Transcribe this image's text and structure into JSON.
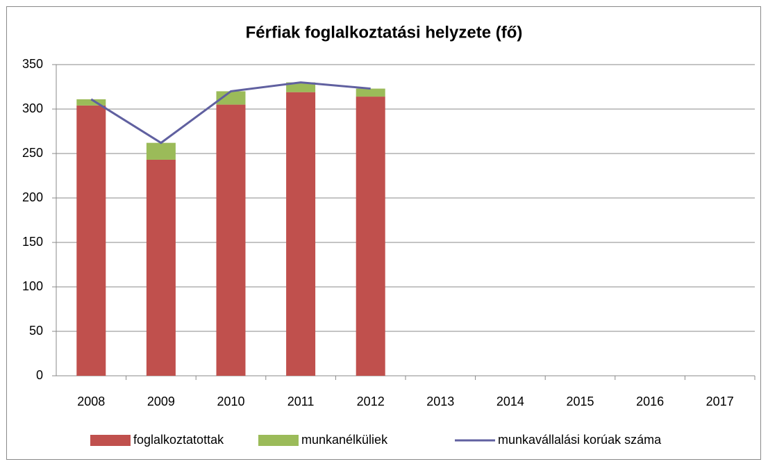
{
  "chart_data": {
    "type": "bar",
    "title": "Férfiak foglalkoztatási helyzete (fő)",
    "categories": [
      "2008",
      "2009",
      "2010",
      "2011",
      "2012",
      "2013",
      "2014",
      "2015",
      "2016",
      "2017"
    ],
    "series": [
      {
        "name": "foglalkoztatottak",
        "color": "#c0504d",
        "stack": true,
        "values": [
          304,
          243,
          305,
          319,
          314,
          null,
          null,
          null,
          null,
          null
        ]
      },
      {
        "name": "munkanélküliek",
        "color": "#9bbb59",
        "stack": true,
        "values": [
          7,
          19,
          15,
          11,
          9,
          null,
          null,
          null,
          null,
          null
        ]
      },
      {
        "name": "munkavállalási korúak száma",
        "color": "#6060a0",
        "type": "line",
        "values": [
          311,
          262,
          320,
          330,
          323,
          null,
          null,
          null,
          null,
          null
        ]
      }
    ],
    "ylim": [
      0,
      350
    ],
    "yticks": [
      0,
      50,
      100,
      150,
      200,
      250,
      300,
      350
    ],
    "grid": true,
    "legend": "bottom"
  }
}
